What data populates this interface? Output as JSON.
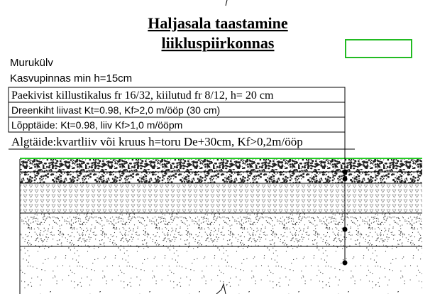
{
  "title": {
    "line1": "Haljasala taastamine",
    "line2": "liikluspiirkonnas"
  },
  "labels": [
    "Murukülv",
    "Kasvupinnas min h=15cm"
  ],
  "layers": [
    "Paekivist killustikalus fr 16/32, kiilutud fr 8/12, h= 20 cm",
    "Dreenkiht liivast Kt=0.98, Kf>2,0 m/ööp (30 cm)",
    "Lõpptäide: Kt=0.98, liiv Kf>1,0 m/ööpm",
    "Algtäide:kvartliiv või kruus h=toru De+30cm, Kf>0,2m/ööp"
  ]
}
